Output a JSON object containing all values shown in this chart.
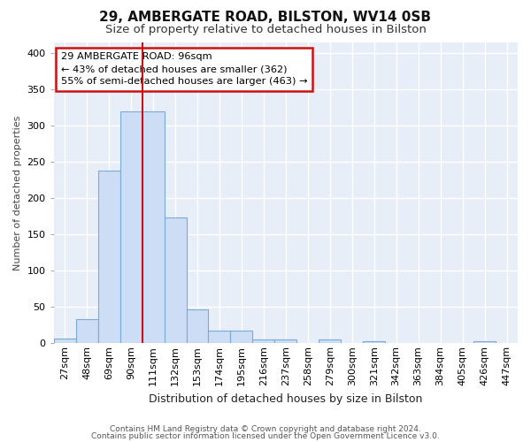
{
  "title1": "29, AMBERGATE ROAD, BILSTON, WV14 0SB",
  "title2": "Size of property relative to detached houses in Bilston",
  "xlabel": "Distribution of detached houses by size in Bilston",
  "ylabel": "Number of detached properties",
  "categories": [
    "27sqm",
    "48sqm",
    "69sqm",
    "90sqm",
    "111sqm",
    "132sqm",
    "153sqm",
    "174sqm",
    "195sqm",
    "216sqm",
    "237sqm",
    "258sqm",
    "279sqm",
    "300sqm",
    "321sqm",
    "342sqm",
    "363sqm",
    "384sqm",
    "405sqm",
    "426sqm",
    "447sqm"
  ],
  "values": [
    7,
    33,
    238,
    320,
    320,
    173,
    46,
    17,
    17,
    5,
    5,
    0,
    5,
    0,
    3,
    0,
    0,
    0,
    0,
    3,
    0
  ],
  "bar_color": "#ccddf5",
  "bar_edge_color": "#7aaad8",
  "vline_color": "#cc1111",
  "vline_bin_index": 4,
  "annotation_text": "29 AMBERGATE ROAD: 96sqm\n← 43% of detached houses are smaller (362)\n55% of semi-detached houses are larger (463) →",
  "annotation_box_color": "white",
  "annotation_box_edge_color": "#cc1111",
  "footnote1": "Contains HM Land Registry data © Crown copyright and database right 2024.",
  "footnote2": "Contains public sector information licensed under the Open Government Licence v3.0.",
  "ylim": [
    0,
    415
  ],
  "yticks": [
    0,
    50,
    100,
    150,
    200,
    250,
    300,
    350,
    400
  ],
  "bg_color": "#e8eef8",
  "fig_bg_color": "#ffffff",
  "title1_fontsize": 11,
  "title2_fontsize": 9.5,
  "ylabel_fontsize": 8,
  "xlabel_fontsize": 9,
  "tick_fontsize": 8,
  "footnote_fontsize": 6.5
}
